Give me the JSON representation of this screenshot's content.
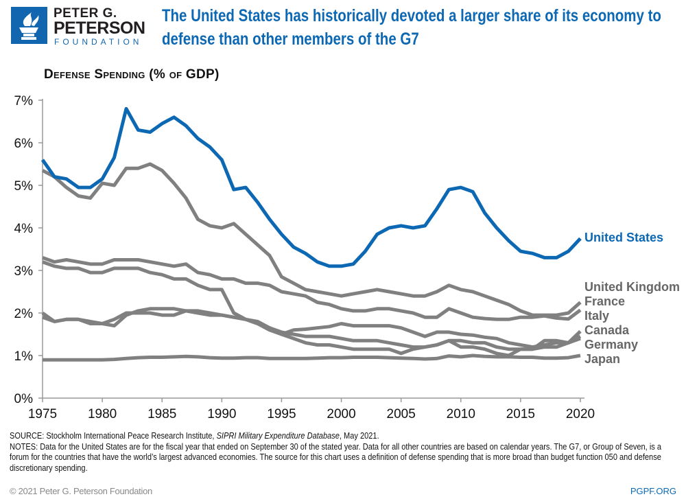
{
  "logo": {
    "line1": "PETER G.",
    "line2": "PETERSON",
    "line3": "FOUNDATION",
    "icon": "torch-icon"
  },
  "title": "The United States has historically devoted a larger share of its economy to defense than other members of the G7",
  "footer": {
    "source_prefix": "SOURCE: Stockholm International Peace Research Institute, ",
    "source_italic": "SIPRI Military Expenditure Database",
    "source_suffix": ", May 2021.",
    "notes": "NOTES: Data for the United States are for the fiscal year that ended on September 30 of the stated year. Data for all other countries are based on calendar years. The G7, or Group of Seven, is a forum for the countries that have the world’s largest advanced economies. The source for this chart uses a definition of defense spending that is more broad than budget function 050 and defense discretionary spending.",
    "copyright": "© 2021 Peter G. Peterson Foundation",
    "url": "PGPF.ORG"
  },
  "colors": {
    "highlight": "#0d68b3",
    "others": "#808080",
    "axis": "#999999"
  },
  "chart_data": {
    "type": "line",
    "title": "Defense Spending (% of GDP)",
    "xlim": [
      1975,
      2020
    ],
    "ylim": [
      0,
      7
    ],
    "x_ticks": [
      "1975",
      "1980",
      "1985",
      "1990",
      "1995",
      "2000",
      "2005",
      "2010",
      "2015",
      "2020"
    ],
    "y_ticks": [
      "0%",
      "1%",
      "2%",
      "3%",
      "4%",
      "5%",
      "6%",
      "7%"
    ],
    "grid": false,
    "legend": "direct labels at right end of lines",
    "x": [
      1975,
      1976,
      1977,
      1978,
      1979,
      1980,
      1981,
      1982,
      1983,
      1984,
      1985,
      1986,
      1987,
      1988,
      1989,
      1990,
      1991,
      1992,
      1993,
      1994,
      1995,
      1996,
      1997,
      1998,
      1999,
      2000,
      2001,
      2002,
      2003,
      2004,
      2005,
      2006,
      2007,
      2008,
      2009,
      2010,
      2011,
      2012,
      2013,
      2014,
      2015,
      2016,
      2017,
      2018,
      2019,
      2020
    ],
    "series": [
      {
        "name": "United States",
        "highlight": true,
        "values": [
          5.6,
          5.2,
          5.15,
          4.95,
          4.95,
          5.15,
          5.65,
          6.8,
          6.3,
          6.25,
          6.45,
          6.6,
          6.4,
          6.1,
          5.9,
          5.6,
          4.9,
          4.95,
          4.6,
          4.2,
          3.85,
          3.55,
          3.4,
          3.2,
          3.1,
          3.1,
          3.15,
          3.45,
          3.85,
          4.0,
          4.05,
          4.0,
          4.05,
          4.45,
          4.9,
          4.95,
          4.85,
          4.35,
          4.0,
          3.7,
          3.45,
          3.4,
          3.3,
          3.3,
          3.45,
          3.75
        ]
      },
      {
        "name": "United Kingdom",
        "values": [
          5.35,
          5.2,
          4.95,
          4.75,
          4.7,
          5.05,
          5.0,
          5.4,
          5.4,
          5.5,
          5.35,
          5.05,
          4.7,
          4.2,
          4.05,
          4.0,
          4.1,
          3.85,
          3.6,
          3.35,
          2.85,
          2.7,
          2.55,
          2.5,
          2.45,
          2.4,
          2.45,
          2.5,
          2.55,
          2.5,
          2.45,
          2.4,
          2.4,
          2.5,
          2.65,
          2.55,
          2.5,
          2.4,
          2.3,
          2.2,
          2.05,
          1.95,
          1.95,
          1.95,
          2.0,
          2.25
        ]
      },
      {
        "name": "France",
        "values": [
          3.3,
          3.2,
          3.25,
          3.2,
          3.15,
          3.15,
          3.25,
          3.25,
          3.25,
          3.2,
          3.15,
          3.1,
          3.15,
          2.95,
          2.9,
          2.8,
          2.8,
          2.7,
          2.7,
          2.65,
          2.5,
          2.45,
          2.4,
          2.25,
          2.2,
          2.1,
          2.05,
          2.05,
          2.1,
          2.1,
          2.05,
          2.0,
          1.9,
          1.9,
          2.1,
          2.0,
          1.9,
          1.87,
          1.85,
          1.85,
          1.9,
          1.9,
          1.93,
          1.88,
          1.86,
          2.07
        ]
      },
      {
        "name": "Italy",
        "values": [
          2.0,
          1.8,
          1.85,
          1.85,
          1.75,
          1.75,
          1.85,
          2.0,
          2.0,
          2.0,
          1.95,
          1.95,
          2.05,
          2.05,
          2.0,
          1.95,
          1.9,
          1.85,
          1.75,
          1.6,
          1.5,
          1.6,
          1.62,
          1.65,
          1.68,
          1.75,
          1.7,
          1.7,
          1.7,
          1.7,
          1.65,
          1.55,
          1.45,
          1.55,
          1.55,
          1.5,
          1.48,
          1.43,
          1.4,
          1.3,
          1.25,
          1.2,
          1.25,
          1.3,
          1.3,
          1.57
        ]
      },
      {
        "name": "Canada",
        "values": [
          1.9,
          1.8,
          1.85,
          1.85,
          1.8,
          1.75,
          1.7,
          1.95,
          2.05,
          2.1,
          2.1,
          2.1,
          2.05,
          2.0,
          1.95,
          1.95,
          1.9,
          1.85,
          1.8,
          1.65,
          1.5,
          1.4,
          1.3,
          1.25,
          1.25,
          1.2,
          1.15,
          1.15,
          1.15,
          1.15,
          1.05,
          1.15,
          1.2,
          1.25,
          1.35,
          1.2,
          1.2,
          1.15,
          1.05,
          1.0,
          1.15,
          1.15,
          1.35,
          1.35,
          1.3,
          1.45
        ]
      },
      {
        "name": "Germany",
        "values": [
          3.2,
          3.1,
          3.05,
          3.05,
          2.95,
          2.95,
          3.05,
          3.05,
          3.05,
          2.95,
          2.9,
          2.8,
          2.8,
          2.65,
          2.55,
          2.55,
          2.0,
          1.85,
          1.75,
          1.65,
          1.55,
          1.5,
          1.45,
          1.45,
          1.45,
          1.4,
          1.35,
          1.35,
          1.35,
          1.3,
          1.25,
          1.2,
          1.2,
          1.25,
          1.35,
          1.35,
          1.3,
          1.3,
          1.2,
          1.15,
          1.15,
          1.15,
          1.2,
          1.2,
          1.3,
          1.4
        ]
      },
      {
        "name": "Japan",
        "values": [
          0.9,
          0.9,
          0.9,
          0.9,
          0.9,
          0.9,
          0.91,
          0.93,
          0.95,
          0.96,
          0.96,
          0.97,
          0.98,
          0.97,
          0.95,
          0.94,
          0.94,
          0.95,
          0.95,
          0.93,
          0.93,
          0.93,
          0.93,
          0.94,
          0.95,
          0.95,
          0.96,
          0.96,
          0.96,
          0.95,
          0.94,
          0.93,
          0.92,
          0.93,
          0.99,
          0.97,
          1.0,
          0.98,
          0.97,
          0.97,
          0.96,
          0.96,
          0.94,
          0.94,
          0.95,
          1.0
        ]
      }
    ]
  }
}
